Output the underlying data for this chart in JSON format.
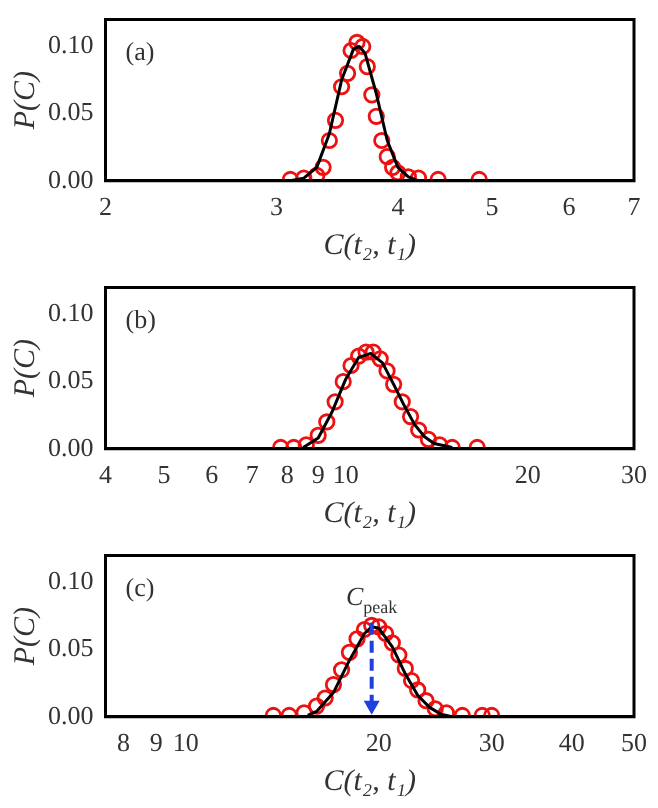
{
  "chart_data": [
    {
      "type": "scatter",
      "xlabel": "C(t₂, t₁)",
      "ylabel": "P(C)",
      "annotations": [
        "(a)"
      ],
      "log": "x",
      "xlim": [
        2,
        7
      ],
      "xticks": [
        2,
        3,
        4,
        5,
        6,
        7
      ],
      "ylim": [
        0,
        0.12
      ],
      "yticks": [
        {
          "value": 0,
          "label": "0.00"
        },
        {
          "value": 0.05,
          "label": "0.05"
        },
        {
          "value": 0.1,
          "label": "0.10"
        }
      ],
      "series": [
        {
          "marker": "circle",
          "color": "#ee1111",
          "x": [
            3.1,
            3.2,
            3.3,
            3.35,
            3.4,
            3.45,
            3.5,
            3.55,
            3.58,
            3.63,
            3.68,
            3.72,
            3.76,
            3.8,
            3.85,
            3.9,
            3.95,
            4.0,
            4.1,
            4.2,
            4.4,
            4.85
          ],
          "values": [
            0.001,
            0.002,
            0.004,
            0.01,
            0.03,
            0.045,
            0.07,
            0.08,
            0.097,
            0.103,
            0.1,
            0.085,
            0.064,
            0.048,
            0.03,
            0.018,
            0.01,
            0.006,
            0.003,
            0.002,
            0.001,
            0.001
          ]
        },
        {
          "type": "line",
          "marker": "none",
          "color": "#000000",
          "x": [
            3.1,
            3.2,
            3.3,
            3.4,
            3.5,
            3.6,
            3.65,
            3.7,
            3.8,
            3.9,
            4.0,
            4.1,
            4.2
          ],
          "values": [
            0,
            0.002,
            0.01,
            0.035,
            0.075,
            0.098,
            0.1,
            0.095,
            0.065,
            0.03,
            0.01,
            0.003,
            0
          ]
        }
      ]
    },
    {
      "type": "scatter",
      "xlabel": "C(t₂, t₁)",
      "ylabel": "P(C)",
      "annotations": [
        "(b)"
      ],
      "log": "x",
      "xlim": [
        4,
        30
      ],
      "xticks": [
        4,
        5,
        6,
        7,
        8,
        9,
        10,
        20,
        30
      ],
      "ylim": [
        0,
        0.12
      ],
      "yticks": [
        {
          "value": 0,
          "label": "0.00"
        },
        {
          "value": 0.05,
          "label": "0.05"
        },
        {
          "value": 0.1,
          "label": "0.10"
        }
      ],
      "series": [
        {
          "marker": "circle",
          "color": "#ee1111",
          "x": [
            7.8,
            8.2,
            8.6,
            9.0,
            9.3,
            9.6,
            9.9,
            10.2,
            10.5,
            10.8,
            11.1,
            11.4,
            11.7,
            12.0,
            12.4,
            12.8,
            13.2,
            13.7,
            14.3,
            15,
            16.5
          ],
          "values": [
            0.001,
            0.001,
            0.003,
            0.01,
            0.02,
            0.035,
            0.05,
            0.062,
            0.069,
            0.072,
            0.072,
            0.067,
            0.058,
            0.048,
            0.035,
            0.024,
            0.014,
            0.007,
            0.003,
            0.001,
            0.001
          ]
        },
        {
          "type": "line",
          "marker": "none",
          "color": "#000000",
          "x": [
            8.5,
            9,
            9.5,
            10,
            10.5,
            11,
            11.5,
            12,
            12.5,
            13,
            13.5,
            14,
            15
          ],
          "values": [
            0.001,
            0.008,
            0.028,
            0.052,
            0.068,
            0.071,
            0.064,
            0.048,
            0.032,
            0.018,
            0.009,
            0.004,
            0.001
          ]
        }
      ]
    },
    {
      "type": "scatter",
      "xlabel": "C(t₂, t₁)",
      "ylabel": "P(C)",
      "annotations": [
        "(c)",
        {
          "text": "C$_{peak}$",
          "x": 19.5,
          "y": 0.07
        }
      ],
      "log": "x",
      "xlim": [
        7.5,
        50
      ],
      "xticks": [
        8,
        9,
        10,
        20,
        30,
        40,
        50
      ],
      "ylim": [
        0,
        0.12
      ],
      "yticks": [
        {
          "value": 0,
          "label": "0.00"
        },
        {
          "value": 0.05,
          "label": "0.05"
        },
        {
          "value": 0.1,
          "label": "0.10"
        }
      ],
      "series": [
        {
          "marker": "circle",
          "color": "#ee1111",
          "x": [
            13.7,
            14.5,
            15.3,
            16,
            16.5,
            17,
            17.5,
            18,
            18.5,
            19,
            19.5,
            20,
            20.5,
            21,
            21.5,
            22,
            22.5,
            23,
            23.7,
            24.5,
            25.5,
            27,
            29,
            30
          ],
          "values": [
            0.001,
            0.001,
            0.003,
            0.008,
            0.014,
            0.024,
            0.035,
            0.048,
            0.058,
            0.065,
            0.068,
            0.067,
            0.062,
            0.055,
            0.046,
            0.036,
            0.027,
            0.02,
            0.012,
            0.006,
            0.003,
            0.001,
            0.001,
            0.001
          ]
        },
        {
          "type": "line",
          "marker": "none",
          "color": "#000000",
          "x": [
            15.5,
            16,
            17,
            18,
            19,
            19.5,
            20,
            21,
            22,
            23,
            24,
            25,
            26
          ],
          "values": [
            0.001,
            0.004,
            0.018,
            0.042,
            0.062,
            0.067,
            0.066,
            0.052,
            0.032,
            0.016,
            0.007,
            0.002,
            0
          ]
        }
      ]
    }
  ]
}
